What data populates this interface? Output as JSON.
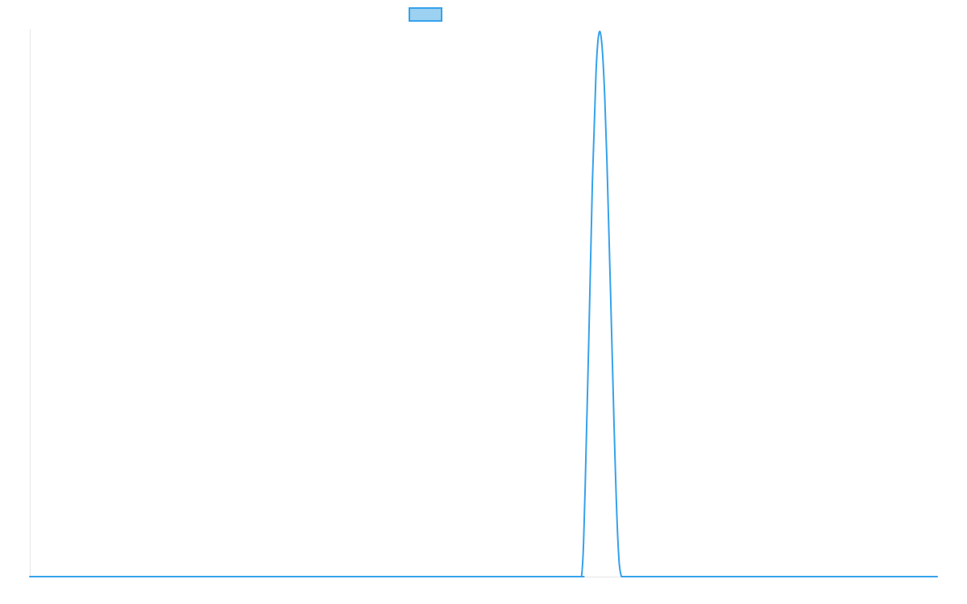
{
  "chart_data": {
    "type": "line",
    "title": "",
    "xlabel": "",
    "ylabel": "",
    "grid": false,
    "legend": {
      "placement": "top-center",
      "entries": [
        {
          "label": "",
          "swatch_fill": "#9dd1f1",
          "swatch_stroke": "#36a2eb"
        }
      ]
    },
    "xlim": [
      0,
      1000
    ],
    "ylim": [
      0,
      1
    ],
    "series": [
      {
        "color": "#36a2eb",
        "x": [
          0,
          100,
          200,
          300,
          400,
          500,
          600,
          608,
          612,
          616,
          620,
          624,
          627,
          630,
          633,
          636,
          640,
          644,
          648,
          652,
          660,
          700,
          800,
          900,
          1000
        ],
        "values": [
          0,
          0,
          0,
          0,
          0,
          0,
          0,
          0,
          0.16,
          0.43,
          0.72,
          0.92,
          0.99,
          0.98,
          0.9,
          0.76,
          0.52,
          0.27,
          0.07,
          0,
          0,
          0,
          0,
          0,
          0
        ]
      }
    ]
  },
  "axes": {
    "axis_color": "#e6e6e6"
  }
}
